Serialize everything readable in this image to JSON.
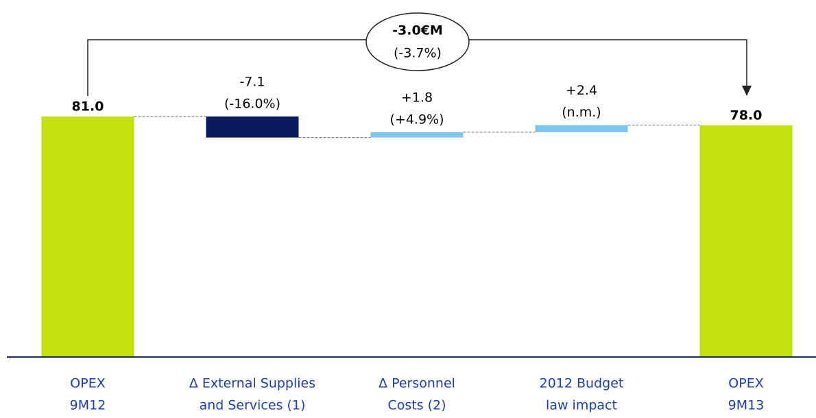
{
  "chart_data": {
    "type": "waterfall",
    "categories": [
      [
        "OPEX",
        "9M12"
      ],
      [
        "Δ External Supplies",
        "and Services (1)"
      ],
      [
        "Δ Personnel",
        "Costs (2)"
      ],
      [
        "2012 Budget",
        "law impact"
      ],
      [
        "OPEX",
        "9M13"
      ]
    ],
    "values": [
      81.0,
      -7.1,
      1.8,
      2.4,
      78.0
    ],
    "value_labels": [
      "81.0",
      "-7.1",
      "+1.8",
      "+2.4",
      "78.0"
    ],
    "percent_labels": [
      null,
      "(-16.0%)",
      "(+4.9%)",
      "(n.m.)",
      null
    ],
    "totals": [
      true,
      false,
      false,
      false,
      true
    ],
    "colors": [
      "#c5e00f",
      "#0a1a5c",
      "#7ec6f0",
      "#7ec6f0",
      "#c5e00f"
    ],
    "ylim": [
      0,
      81
    ],
    "annotation": {
      "text": "-3.0€M",
      "subtext": "(-3.7%)"
    }
  }
}
